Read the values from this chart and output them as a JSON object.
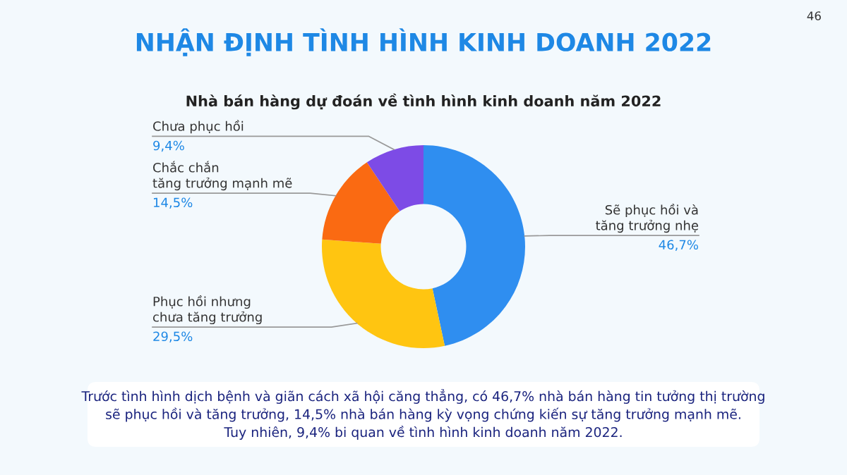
{
  "chart_data": {
    "type": "donut",
    "title": "NHẬN ĐỊNH TÌNH HÌNH KINH DOANH 2022",
    "subtitle": "Nhà bán hàng dự đoán về tình hình kinh doanh năm 2022",
    "categories": [
      "Sẽ phục hồi và\ntăng trưởng nhẹ",
      "Phục hồi nhưng\nchưa tăng trưởng",
      "Chắc chắn\ntăng trưởng mạnh mẽ",
      "Chưa phục hồi"
    ],
    "values": [
      46.7,
      29.5,
      14.5,
      9.4
    ],
    "value_labels": [
      "46,7%",
      "29,5%",
      "14,5%",
      "9,4%"
    ],
    "colors": [
      "#2f8ef0",
      "#ffc511",
      "#fa6a12",
      "#7d4be6"
    ],
    "annotations": [
      "46",
      "Trước tình hình dịch bệnh và giãn cách xã hội căng thẳng, có 46,7% nhà bán hàng tin tưởng thị trường\nsẽ phục hồi và tăng trưởng, 14,5% nhà bán hàng kỳ vọng chứng kiến sự tăng trưởng mạnh mẽ.\nTuy nhiên, 9,4% bi quan về tình hình kinh doanh năm 2022."
    ]
  }
}
